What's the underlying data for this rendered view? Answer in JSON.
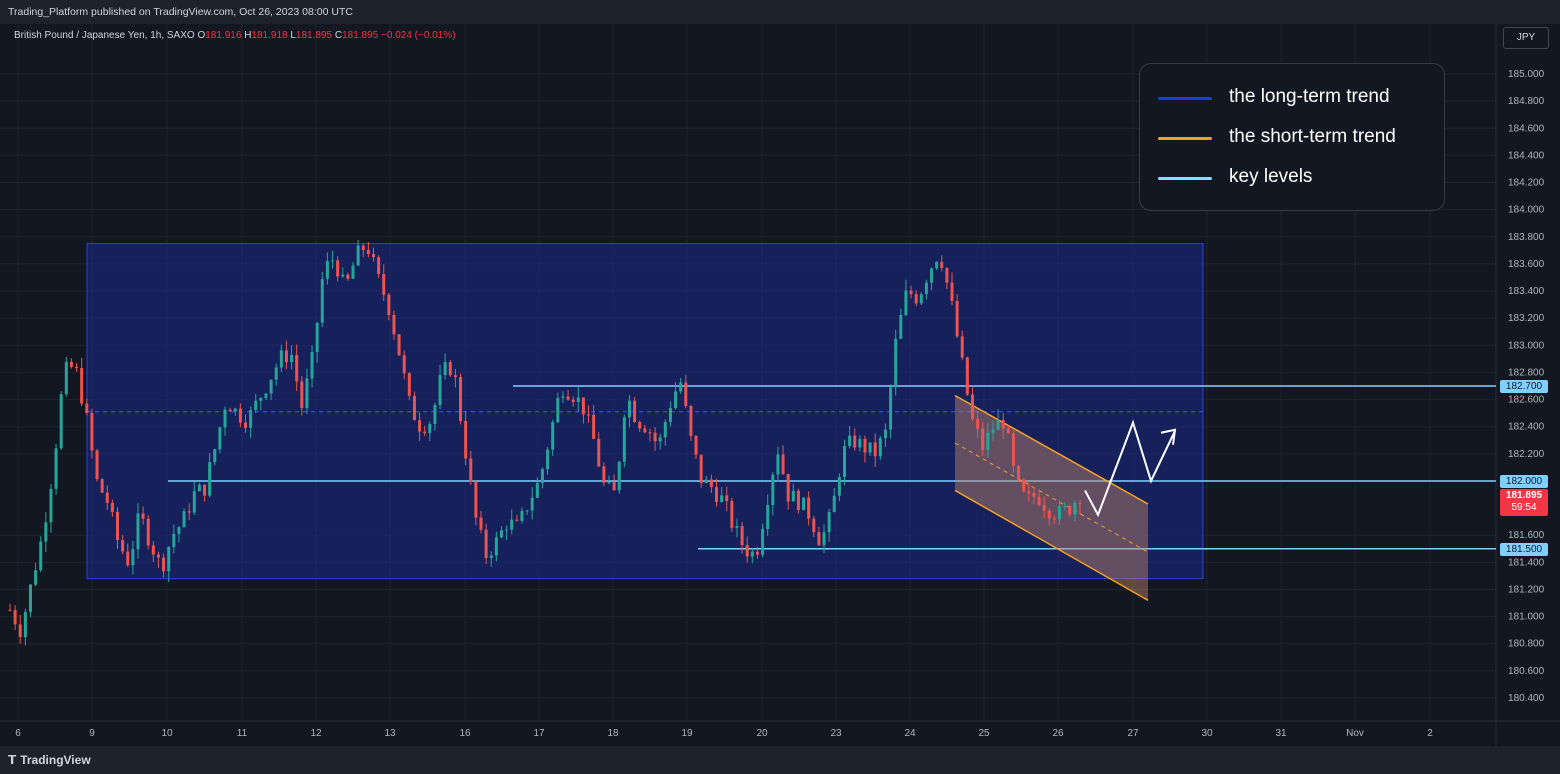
{
  "header": {
    "published_text": "Trading_Platform published on TradingView.com, Oct 26, 2023 08:00 UTC"
  },
  "symbol": {
    "name": "British Pound / Japanese Yen, 1h, SAXO",
    "open_label": "O",
    "open": "181.916",
    "high_label": "H",
    "high": "181.918",
    "low_label": "L",
    "low": "181.895",
    "close_label": "C",
    "close": "181.895",
    "change": "−0.024 (−0.01%)"
  },
  "currency_button": "JPY",
  "legend": {
    "items": [
      {
        "label": "the long-term trend",
        "color": "#1e3ae8"
      },
      {
        "label": "the short-term trend",
        "color": "#f7a020"
      },
      {
        "label": "key levels",
        "color": "#7fe0ff"
      }
    ]
  },
  "current_price": {
    "value": "181.895",
    "countdown": "59:54",
    "color": "#f23645"
  },
  "footer": {
    "brand": "TradingView"
  },
  "chart_data": {
    "type": "candlestick",
    "y_axis": {
      "min": 180.3,
      "max": 185.15,
      "ticks": [
        "185.000",
        "184.800",
        "184.600",
        "184.400",
        "184.200",
        "184.000",
        "183.800",
        "183.600",
        "183.400",
        "183.200",
        "183.000",
        "182.800",
        "182.600",
        "182.400",
        "182.200",
        "181.600",
        "181.400",
        "181.200",
        "181.000",
        "180.800",
        "180.600",
        "180.400"
      ]
    },
    "x_axis": {
      "ticks": [
        "6",
        "9",
        "10",
        "11",
        "12",
        "13",
        "16",
        "17",
        "18",
        "19",
        "20",
        "23",
        "24",
        "25",
        "26",
        "27",
        "30",
        "31",
        "Nov",
        "2"
      ]
    },
    "key_levels": [
      {
        "price": 182.7,
        "label": "182.700"
      },
      {
        "price": 182.0,
        "label": "182.000"
      },
      {
        "price": 181.5,
        "label": "181.500"
      }
    ],
    "long_term_range": {
      "top": 183.75,
      "bottom": 181.28,
      "mid": 182.51
    },
    "short_term_channel": {
      "upper_start": 182.63,
      "upper_end": 181.83,
      "lower_start": 181.93,
      "lower_end": 181.12
    },
    "projection": [
      181.75,
      182.43,
      182.0,
      182.37
    ],
    "candle_path": [
      181.05,
      180.9,
      181.25,
      181.6,
      182.1,
      182.8,
      182.85,
      182.5,
      182.0,
      181.85,
      181.55,
      181.4,
      181.75,
      181.55,
      181.35,
      181.6,
      181.7,
      181.9,
      181.95,
      182.25,
      182.6,
      182.5,
      182.45,
      182.6,
      182.75,
      182.9,
      182.95,
      182.55,
      182.9,
      183.55,
      183.65,
      183.4,
      183.65,
      183.75,
      183.5,
      183.3,
      182.95,
      182.55,
      182.4,
      182.45,
      182.8,
      182.85,
      182.3,
      181.75,
      181.45,
      181.55,
      181.7,
      181.65,
      181.85,
      182.0,
      182.35,
      182.7,
      182.65,
      182.55,
      182.3,
      181.95,
      181.9,
      182.65,
      182.45,
      182.4,
      182.25,
      182.55,
      182.75,
      182.3,
      182.0,
      181.95,
      181.85,
      181.65,
      181.5,
      181.45,
      181.85,
      182.25,
      181.9,
      181.85,
      181.75,
      181.55,
      181.75,
      182.2,
      182.3,
      182.25,
      182.2,
      182.35,
      183.05,
      183.4,
      183.35,
      183.55,
      183.7,
      183.35,
      182.9,
      182.45,
      182.25,
      182.4,
      182.45,
      182.0,
      181.85,
      181.9,
      181.8,
      181.75,
      181.8,
      181.9
    ]
  }
}
